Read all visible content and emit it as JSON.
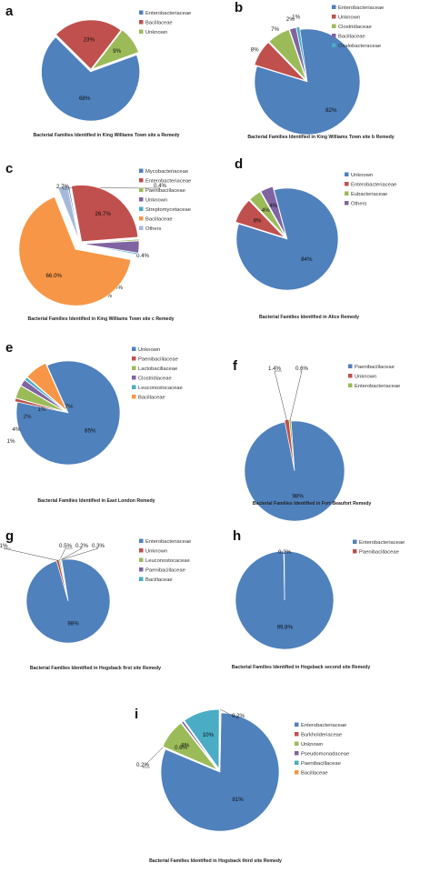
{
  "colors": {
    "blue": "#4f81bd",
    "red": "#c0504d",
    "green": "#9bbb59",
    "purple": "#8064a2",
    "cyan": "#4bacc6",
    "orange": "#f79646",
    "lightblue": "#a5b9da"
  },
  "chart_data": [
    {
      "type": "pie",
      "panel": "a",
      "title": "Bacterial Families Identified in King Williams Town site a Remedy",
      "slices": [
        {
          "label": "Enterobacteriaceae",
          "value": 68,
          "text": "68%",
          "color": "blue"
        },
        {
          "label": "Bacillaceae",
          "value": 23,
          "text": "23%",
          "color": "red"
        },
        {
          "label": "Unknown",
          "value": 9,
          "text": "9%",
          "color": "green"
        }
      ]
    },
    {
      "type": "pie",
      "panel": "b",
      "title": "Bacterial Families Identified in King Williams Town site b Remedy",
      "slices": [
        {
          "label": "Enterobacteriaceae",
          "value": 82,
          "text": "82%",
          "color": "blue"
        },
        {
          "label": "Unknown",
          "value": 8,
          "text": "8%",
          "color": "red"
        },
        {
          "label": "Clostridiaceae",
          "value": 7,
          "text": "7%",
          "color": "green"
        },
        {
          "label": "Bacillaceae",
          "value": 2,
          "text": "2%",
          "color": "purple"
        },
        {
          "label": "Oxalobacteraceae",
          "value": 1,
          "text": "1%",
          "color": "cyan"
        }
      ]
    },
    {
      "type": "pie",
      "panel": "c",
      "title": "Bacterial Families Identified in King Williams Town site c Remedy",
      "slices": [
        {
          "label": "Mycobacteriaceae",
          "value": 0.4,
          "text": "0.4%",
          "color": "blue"
        },
        {
          "label": "Enterobacteriaceae",
          "value": 26.7,
          "text": "26.7%",
          "color": "red"
        },
        {
          "label": "Paenibacillaceae",
          "value": 0.4,
          "text": "0.4%",
          "color": "green"
        },
        {
          "label": "Unknown",
          "value": 3.4,
          "text": "3.4%",
          "color": "purple"
        },
        {
          "label": "Streptomycetaceae",
          "value": 0.4,
          "text": "0.4%",
          "color": "cyan"
        },
        {
          "label": "Bacillaceae",
          "value": 66.0,
          "text": "66.0%",
          "color": "orange"
        },
        {
          "label": "Others",
          "value": 2.7,
          "text": "2.7%",
          "color": "lightblue"
        }
      ]
    },
    {
      "type": "pie",
      "panel": "d",
      "title": "Bacterial Families Identified in Alice Remedy",
      "slices": [
        {
          "label": "Unknown",
          "value": 84,
          "text": "84%",
          "color": "blue"
        },
        {
          "label": "Enterobacteriaceae",
          "value": 8,
          "text": "8%",
          "color": "red"
        },
        {
          "label": "Eubacteriaceae",
          "value": 4,
          "text": "4%",
          "color": "green"
        },
        {
          "label": "Others",
          "value": 4,
          "text": "4%",
          "color": "purple"
        }
      ]
    },
    {
      "type": "pie",
      "panel": "e",
      "title": "Bacterial Families Identified in East London Remedy",
      "slices": [
        {
          "label": "Unknown",
          "value": 85,
          "text": "85%",
          "color": "blue"
        },
        {
          "label": "Paenibacillaceae",
          "value": 1,
          "text": "1%",
          "color": "red"
        },
        {
          "label": "Lactobacillaceae",
          "value": 4,
          "text": "4%",
          "color": "green"
        },
        {
          "label": "Clostridiaceae",
          "value": 2,
          "text": "2%",
          "color": "purple"
        },
        {
          "label": "Leuconostocaceae",
          "value": 1,
          "text": "1%",
          "color": "cyan"
        },
        {
          "label": "Bacillaceae",
          "value": 7,
          "text": "7%",
          "color": "orange"
        }
      ]
    },
    {
      "type": "pie",
      "panel": "f",
      "title": "Bacterial Families Identified in Fort Beaufort Remedy",
      "slices": [
        {
          "label": "Paenibacillaceae",
          "value": 98,
          "text": "98%",
          "color": "blue"
        },
        {
          "label": "Unknown",
          "value": 1.4,
          "text": "1.4%",
          "color": "red"
        },
        {
          "label": "Enterobacteriaceae",
          "value": 0.6,
          "text": "0.6%",
          "color": "green"
        }
      ]
    },
    {
      "type": "pie",
      "panel": "g",
      "title": "Bacterial Families Identified in Hogsback first site Remedy",
      "slices": [
        {
          "label": "Enterobacteriaceae",
          "value": 98,
          "text": "98%",
          "color": "blue"
        },
        {
          "label": "Unknown",
          "value": 1,
          "text": "1%",
          "color": "red"
        },
        {
          "label": "Leuconostocaceae",
          "value": 0.5,
          "text": "0.5%",
          "color": "green"
        },
        {
          "label": "Paenibacillaceae",
          "value": 0.2,
          "text": "0.2%",
          "color": "purple"
        },
        {
          "label": "Bacillaceae",
          "value": 0.3,
          "text": "0.3%",
          "color": "cyan"
        }
      ]
    },
    {
      "type": "pie",
      "panel": "h",
      "title": "Bacterial Families Identified in Hogsback second site Remedy",
      "slices": [
        {
          "label": "Enterobacteriaceae",
          "value": 99.8,
          "text": "99.8%",
          "color": "blue"
        },
        {
          "label": "Paenibacillaceae",
          "value": 0.2,
          "text": "0.2%",
          "color": "red"
        }
      ]
    },
    {
      "type": "pie",
      "panel": "i",
      "title": "Bacterial Families Identified in Hogsback third site Remedy",
      "slices": [
        {
          "label": "Enterobacteriaceae",
          "value": 81,
          "text": "81%",
          "color": "blue"
        },
        {
          "label": "Burkholderiaceae",
          "value": 0.2,
          "text": "0.2%",
          "color": "red"
        },
        {
          "label": "Unknown",
          "value": 8,
          "text": "8%",
          "color": "green"
        },
        {
          "label": "Pseudomonadaceae",
          "value": 0.6,
          "text": "0.6%",
          "color": "purple"
        },
        {
          "label": "Paenibacillaceae",
          "value": 10,
          "text": "10%",
          "color": "cyan"
        },
        {
          "label": "Bacillaceae",
          "value": 0.2,
          "text": "0.2%",
          "color": "orange"
        }
      ]
    }
  ]
}
